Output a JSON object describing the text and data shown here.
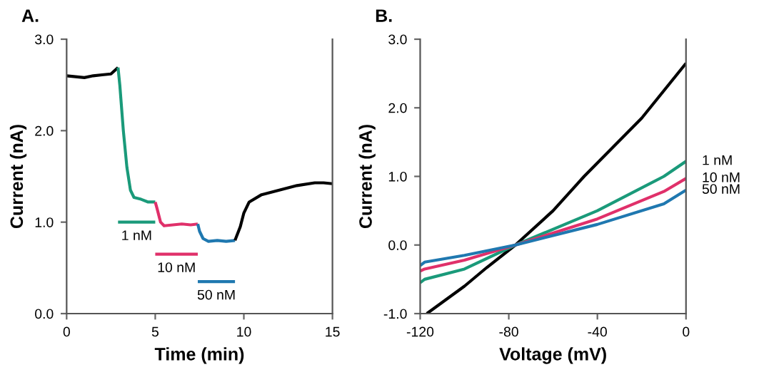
{
  "chart_data": [
    {
      "type": "line",
      "title": "A.",
      "xlabel": "Time (min)",
      "ylabel": "Current (nA)",
      "xlim": [
        0,
        15
      ],
      "ylim": [
        0,
        3
      ],
      "xticks": [
        0,
        5,
        10,
        15
      ],
      "yticks": [
        {
          "value": 0,
          "label": "0.0"
        },
        {
          "value": 1,
          "label": "1.0"
        },
        {
          "value": 2,
          "label": "2.0"
        },
        {
          "value": 3,
          "label": "3.0"
        }
      ],
      "grid": false,
      "legend": false,
      "series": [
        {
          "color": "#000000",
          "x": [
            0,
            0.5,
            1,
            1.5,
            2,
            2.5,
            2.9
          ],
          "values": [
            2.6,
            2.59,
            2.58,
            2.6,
            2.61,
            2.62,
            2.69
          ]
        },
        {
          "color": "#1a9a7a",
          "x": [
            2.9,
            3.0,
            3.2,
            3.4,
            3.6,
            3.8,
            4.2,
            4.6,
            5.0
          ],
          "values": [
            2.69,
            2.5,
            2.0,
            1.6,
            1.35,
            1.27,
            1.25,
            1.22,
            1.22
          ]
        },
        {
          "color": "#e0306a",
          "x": [
            5.0,
            5.1,
            5.3,
            5.5,
            6,
            6.5,
            7,
            7.4
          ],
          "values": [
            1.22,
            1.15,
            1.0,
            0.96,
            0.97,
            0.98,
            0.97,
            0.98
          ]
        },
        {
          "color": "#1f78b0",
          "x": [
            7.4,
            7.5,
            7.7,
            8,
            8.5,
            9,
            9.5
          ],
          "values": [
            0.98,
            0.9,
            0.82,
            0.79,
            0.8,
            0.79,
            0.8
          ]
        },
        {
          "color": "#000000",
          "x": [
            9.5,
            9.8,
            10,
            10.3,
            11,
            12,
            13,
            14,
            14.5,
            15
          ],
          "values": [
            0.8,
            0.95,
            1.1,
            1.22,
            1.3,
            1.35,
            1.4,
            1.43,
            1.43,
            1.42
          ]
        },
        {
          "name": "1 nM",
          "color": "#1a9a7a",
          "x": [
            2.9,
            5.0
          ],
          "values": [
            1.0,
            1.0
          ]
        },
        {
          "name": "10 nM",
          "color": "#e0306a",
          "x": [
            5.0,
            7.4
          ],
          "values": [
            0.65,
            0.65
          ]
        },
        {
          "name": "50 nM",
          "color": "#1f78b0",
          "x": [
            7.4,
            9.5
          ],
          "values": [
            0.35,
            0.35
          ]
        }
      ]
    },
    {
      "type": "line",
      "title": "B.",
      "xlabel": "Voltage (mV)",
      "ylabel": "Current (nA)",
      "xlim": [
        -120,
        0
      ],
      "ylim": [
        -1,
        3
      ],
      "xticks": [
        -120,
        -80,
        -40,
        0
      ],
      "yticks": [
        {
          "value": -1,
          "label": "-1.0"
        },
        {
          "value": 0,
          "label": "0.0"
        },
        {
          "value": 1,
          "label": "1.0"
        },
        {
          "value": 2,
          "label": "2.0"
        },
        {
          "value": 3,
          "label": "3.0"
        }
      ],
      "grid": false,
      "legend": false,
      "series": [
        {
          "color": "#000000",
          "x": [
            -117,
            -100,
            -90,
            -77,
            -60,
            -46,
            -20,
            0
          ],
          "values": [
            -1.0,
            -0.6,
            -0.33,
            0,
            0.5,
            1.0,
            1.85,
            2.65
          ]
        },
        {
          "name": "1 nM",
          "color": "#1a9a7a",
          "x": [
            -120,
            -118,
            -100,
            -77,
            -40,
            -10,
            0
          ],
          "values": [
            -0.55,
            -0.5,
            -0.35,
            0,
            0.5,
            1.0,
            1.22
          ]
        },
        {
          "name": "10 nM",
          "color": "#e0306a",
          "x": [
            -120,
            -118,
            -100,
            -77,
            -40,
            -10,
            0
          ],
          "values": [
            -0.38,
            -0.35,
            -0.22,
            0,
            0.38,
            0.78,
            0.97
          ]
        },
        {
          "name": "50 nM",
          "color": "#1f78b0",
          "x": [
            -120,
            -118,
            -100,
            -77,
            -40,
            -10,
            0
          ],
          "values": [
            -0.3,
            -0.25,
            -0.15,
            0,
            0.3,
            0.6,
            0.8
          ]
        }
      ]
    }
  ]
}
